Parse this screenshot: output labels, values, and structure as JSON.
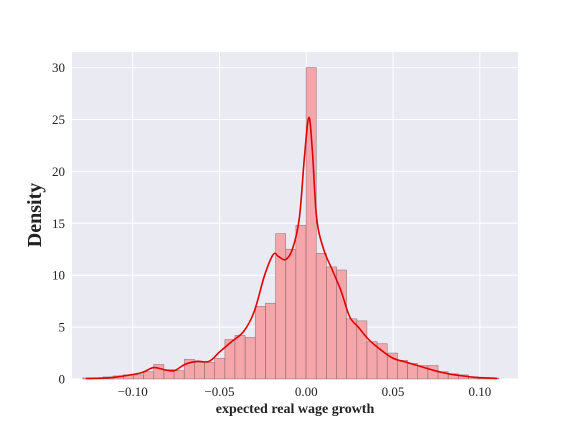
{
  "chart_data": {
    "type": "bar",
    "title": "",
    "xlabel": "expected real wage growth",
    "ylabel": "Density",
    "xlim": [
      -0.135,
      0.122
    ],
    "ylim": [
      0,
      31.5
    ],
    "grid": true,
    "legend": "none",
    "x_ticks": [
      {
        "value": -0.1,
        "label": "−0.10"
      },
      {
        "value": -0.05,
        "label": "−0.05"
      },
      {
        "value": 0.0,
        "label": "0.00"
      },
      {
        "value": 0.05,
        "label": "0.05"
      },
      {
        "value": 0.1,
        "label": "0.10"
      }
    ],
    "y_ticks": [
      {
        "value": 0,
        "label": "0"
      },
      {
        "value": 5,
        "label": "5"
      },
      {
        "value": 10,
        "label": "10"
      },
      {
        "value": 15,
        "label": "15"
      },
      {
        "value": 20,
        "label": "20"
      },
      {
        "value": 25,
        "label": "25"
      },
      {
        "value": 30,
        "label": "30"
      }
    ],
    "histogram": {
      "bin_width": 0.00585,
      "bins": [
        {
          "x0": -0.1288,
          "density": 0.1
        },
        {
          "x0": -0.123,
          "density": 0.1
        },
        {
          "x0": -0.1171,
          "density": 0.2
        },
        {
          "x0": -0.1113,
          "density": 0.3
        },
        {
          "x0": -0.1054,
          "density": 0.4
        },
        {
          "x0": -0.0996,
          "density": 0.4
        },
        {
          "x0": -0.0937,
          "density": 0.7
        },
        {
          "x0": -0.0879,
          "density": 1.4
        },
        {
          "x0": -0.082,
          "density": 0.9
        },
        {
          "x0": -0.0762,
          "density": 0.8
        },
        {
          "x0": -0.0703,
          "density": 1.9
        },
        {
          "x0": -0.0645,
          "density": 1.6
        },
        {
          "x0": -0.0586,
          "density": 1.6
        },
        {
          "x0": -0.0528,
          "density": 2.0
        },
        {
          "x0": -0.0469,
          "density": 3.8
        },
        {
          "x0": -0.0411,
          "density": 4.2
        },
        {
          "x0": -0.0352,
          "density": 4.0
        },
        {
          "x0": -0.0294,
          "density": 7.0
        },
        {
          "x0": -0.0235,
          "density": 7.3
        },
        {
          "x0": -0.0177,
          "density": 14.0
        },
        {
          "x0": -0.0118,
          "density": 12.5
        },
        {
          "x0": -0.006,
          "density": 14.8
        },
        {
          "x0": -0.0001,
          "density": 30.0
        },
        {
          "x0": 0.0057,
          "density": 12.1
        },
        {
          "x0": 0.0116,
          "density": 10.8
        },
        {
          "x0": 0.0174,
          "density": 10.5
        },
        {
          "x0": 0.0233,
          "density": 5.8
        },
        {
          "x0": 0.0291,
          "density": 5.6
        },
        {
          "x0": 0.035,
          "density": 3.6
        },
        {
          "x0": 0.0408,
          "density": 3.4
        },
        {
          "x0": 0.0467,
          "density": 2.5
        },
        {
          "x0": 0.0525,
          "density": 1.8
        },
        {
          "x0": 0.0584,
          "density": 1.5
        },
        {
          "x0": 0.0642,
          "density": 1.3
        },
        {
          "x0": 0.0701,
          "density": 1.3
        },
        {
          "x0": 0.0759,
          "density": 0.7
        },
        {
          "x0": 0.0818,
          "density": 0.5
        },
        {
          "x0": 0.0876,
          "density": 0.4
        },
        {
          "x0": 0.0935,
          "density": 0.2
        },
        {
          "x0": 0.0993,
          "density": 0.1
        },
        {
          "x0": 0.1052,
          "density": 0.1
        }
      ]
    },
    "kde": {
      "x": [
        -0.127,
        -0.115,
        -0.105,
        -0.095,
        -0.088,
        -0.082,
        -0.076,
        -0.07,
        -0.063,
        -0.056,
        -0.05,
        -0.043,
        -0.036,
        -0.03,
        -0.024,
        -0.019,
        -0.016,
        -0.012,
        -0.008,
        -0.004,
        -0.001,
        0.0015,
        0.0035,
        0.006,
        0.01,
        0.015,
        0.02,
        0.025,
        0.03,
        0.036,
        0.043,
        0.05,
        0.058,
        0.066,
        0.074,
        0.082,
        0.09,
        0.098,
        0.105,
        0.11
      ],
      "y": [
        0.05,
        0.1,
        0.3,
        0.6,
        1.1,
        0.9,
        0.8,
        1.4,
        1.7,
        1.7,
        2.6,
        3.6,
        4.6,
        6.5,
        10.0,
        12.0,
        11.8,
        11.5,
        12.5,
        15.5,
        21.5,
        25.2,
        22.0,
        15.5,
        12.5,
        10.5,
        8.5,
        6.0,
        5.0,
        3.8,
        2.8,
        2.0,
        1.6,
        1.2,
        0.8,
        0.5,
        0.3,
        0.15,
        0.1,
        0.05
      ]
    },
    "colors": {
      "background": "#eaeaf2",
      "grid": "#ffffff",
      "bar_fill": "#f4a6ab",
      "bar_edge": "#7a5a5c",
      "kde_line": "#e00000"
    }
  }
}
